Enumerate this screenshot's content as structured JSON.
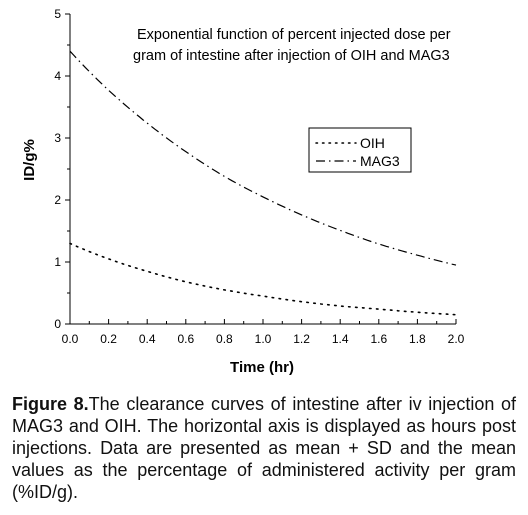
{
  "chart_data": {
    "type": "line",
    "title_lines": [
      "Exponential function of percent injected dose per",
      "gram of intestine after injection of OIH and MAG3"
    ],
    "xlabel": "Time (hr)",
    "ylabel": "ID/g%",
    "xlim": [
      0.0,
      2.0
    ],
    "ylim": [
      0,
      5
    ],
    "x_ticks": [
      "0.0",
      "0.2",
      "0.4",
      "0.6",
      "0.8",
      "1.0",
      "1.2",
      "1.4",
      "1.6",
      "1.8",
      "2.0"
    ],
    "y_ticks": [
      "0",
      "1",
      "2",
      "3",
      "4",
      "5"
    ],
    "grid": false,
    "legend_position": "upper-right",
    "series": [
      {
        "name": "OIH",
        "style": "dotted",
        "x": [
          0.0,
          0.2,
          0.4,
          0.6,
          0.8,
          1.0,
          1.2,
          1.4,
          1.6,
          1.8,
          2.0
        ],
        "y": [
          1.3,
          1.05,
          0.85,
          0.68,
          0.55,
          0.45,
          0.36,
          0.29,
          0.24,
          0.19,
          0.15
        ]
      },
      {
        "name": "MAG3",
        "style": "dash-dot",
        "x": [
          0.0,
          0.2,
          0.4,
          0.6,
          0.8,
          1.0,
          1.2,
          1.4,
          1.6,
          1.8,
          2.0
        ],
        "y": [
          4.4,
          3.77,
          3.24,
          2.78,
          2.38,
          2.05,
          1.76,
          1.51,
          1.29,
          1.11,
          0.95
        ]
      }
    ]
  },
  "caption": {
    "label": "Figure 8.",
    "text": "The clearance curves of intestine after iv injection of MAG3 and OIH. The horizontal axis is displayed as hours post injections. Data are presented as mean + SD and the mean values as the percentage of administered activity per gram (%ID/g)."
  }
}
